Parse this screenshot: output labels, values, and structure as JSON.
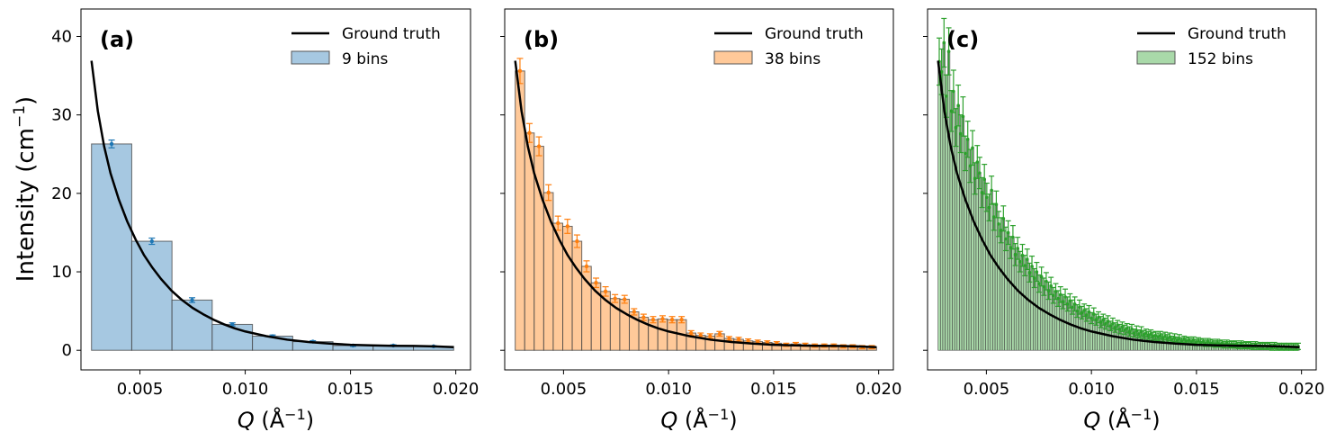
{
  "figure": {
    "ylabel_main": "Intensity (cm",
    "ylabel_sup": "−1",
    "ylabel_end": ")",
    "xlabel_main": "Q",
    "xlabel_unit": " (Å",
    "xlabel_sup": "−1",
    "xlabel_end": ")"
  },
  "chart_data": [
    {
      "type": "bar",
      "panel_label": "(a)",
      "legend": {
        "line": "Ground truth",
        "bars": "9 bins"
      },
      "color": "#1f77b4",
      "bar_fill": "#a6c8e1",
      "xlim": [
        0.0022,
        0.0207
      ],
      "ylim": [
        -2.5,
        43.5
      ],
      "xticks": [
        0.005,
        0.01,
        0.015,
        0.02
      ],
      "xtick_labels": [
        "0.005",
        "0.010",
        "0.015",
        "0.020"
      ],
      "yticks": [
        0,
        10,
        20,
        30,
        40
      ],
      "ytick_labels": [
        "0",
        "10",
        "20",
        "30",
        "40"
      ],
      "bin_start": 0.0027,
      "bin_end": 0.0199,
      "values": [
        26.3,
        13.9,
        6.4,
        3.3,
        1.8,
        1.1,
        0.6,
        0.6,
        0.5
      ],
      "errors": [
        0.5,
        0.4,
        0.3,
        0.2,
        0.15,
        0.12,
        0.1,
        0.1,
        0.08
      ]
    },
    {
      "type": "bar",
      "panel_label": "(b)",
      "legend": {
        "line": "Ground truth",
        "bars": "38 bins"
      },
      "color": "#ff7f0e",
      "bar_fill": "#ffc999",
      "xlim": [
        0.0022,
        0.0207
      ],
      "ylim": [
        -2.5,
        43.5
      ],
      "xticks": [
        0.005,
        0.01,
        0.015,
        0.02
      ],
      "xtick_labels": [
        "0.005",
        "0.010",
        "0.015",
        "0.020"
      ],
      "yticks": [
        0,
        10,
        20,
        30,
        40
      ],
      "ytick_labels": [],
      "bin_start": 0.0027,
      "bin_end": 0.0199,
      "values": [
        35.6,
        27.7,
        26.0,
        20.1,
        16.2,
        15.8,
        13.9,
        10.7,
        8.6,
        7.5,
        6.6,
        6.5,
        4.9,
        4.2,
        3.9,
        4.0,
        3.9,
        3.9,
        2.2,
        1.9,
        1.8,
        2.1,
        1.5,
        1.4,
        1.2,
        1.1,
        1.0,
        0.9,
        0.7,
        0.8,
        0.7,
        0.6,
        0.6,
        0.6,
        0.5,
        0.5,
        0.4,
        0.4
      ],
      "errors": [
        1.6,
        1.2,
        1.2,
        1.0,
        0.9,
        0.9,
        0.8,
        0.7,
        0.6,
        0.6,
        0.5,
        0.5,
        0.4,
        0.4,
        0.4,
        0.4,
        0.4,
        0.4,
        0.3,
        0.3,
        0.3,
        0.3,
        0.25,
        0.25,
        0.25,
        0.2,
        0.2,
        0.2,
        0.2,
        0.2,
        0.2,
        0.2,
        0.2,
        0.2,
        0.2,
        0.2,
        0.2,
        0.2
      ]
    },
    {
      "type": "bar",
      "panel_label": "(c)",
      "legend": {
        "line": "Ground truth",
        "bars": "152 bins"
      },
      "color": "#2ca02c",
      "bar_fill": "#a9d9a9",
      "xlim": [
        0.0022,
        0.0207
      ],
      "ylim": [
        -2.5,
        43.5
      ],
      "xticks": [
        0.005,
        0.01,
        0.015,
        0.02
      ],
      "xtick_labels": [
        "0.005",
        "0.010",
        "0.015",
        "0.020"
      ],
      "yticks": [
        0,
        10,
        20,
        30,
        40
      ],
      "ytick_labels": [],
      "bin_start": 0.0027,
      "bin_end": 0.0199,
      "values": [
        36.8,
        35.5,
        39.2,
        32.4,
        38.1,
        30.5,
        33.0,
        28.4,
        31.2,
        27.6,
        29.8,
        25.1,
        26.9,
        23.5,
        25.8,
        21.9,
        24.0,
        22.6,
        20.1,
        21.8,
        19.5,
        18.2,
        20.4,
        17.0,
        18.6,
        16.1,
        15.3,
        16.8,
        14.2,
        15.0,
        13.1,
        14.4,
        12.2,
        13.0,
        11.3,
        12.1,
        10.8,
        11.6,
        9.9,
        10.7,
        9.2,
        10.0,
        8.5,
        9.4,
        8.1,
        8.8,
        7.6,
        8.2,
        7.0,
        7.5,
        6.6,
        7.1,
        6.2,
        6.8,
        5.9,
        6.3,
        5.5,
        5.9,
        5.0,
        5.5,
        4.8,
        5.1,
        4.5,
        4.9,
        4.1,
        4.6,
        3.9,
        4.2,
        3.6,
        3.9,
        3.4,
        3.7,
        3.1,
        3.4,
        2.9,
        3.2,
        2.7,
        3.0,
        2.6,
        2.8,
        2.4,
        2.7,
        2.2,
        2.5,
        2.1,
        2.4,
        2.0,
        2.2,
        1.9,
        2.1,
        1.8,
        1.9,
        1.7,
        1.9,
        1.6,
        1.8,
        1.5,
        1.7,
        1.4,
        1.6,
        1.3,
        1.5,
        1.2,
        1.4,
        1.2,
        1.3,
        1.1,
        1.3,
        1.0,
        1.2,
        1.0,
        1.1,
        0.9,
        1.1,
        0.9,
        1.0,
        0.8,
        1.0,
        0.8,
        0.9,
        0.7,
        0.9,
        0.7,
        0.8,
        0.7,
        0.8,
        0.6,
        0.8,
        0.6,
        0.7,
        0.6,
        0.7,
        0.5,
        0.7,
        0.5,
        0.6,
        0.5,
        0.6,
        0.5,
        0.6,
        0.4,
        0.6,
        0.4,
        0.5,
        0.4,
        0.5,
        0.4,
        0.5,
        0.4,
        0.5,
        0.4,
        0.5
      ],
      "errors": [
        3.0,
        2.9,
        3.1,
        2.7,
        3.0,
        2.6,
        2.7,
        2.4,
        2.6,
        2.4,
        2.5,
        2.2,
        2.3,
        2.1,
        2.2,
        2.0,
        2.1,
        2.0,
        1.9,
        1.9,
        1.8,
        1.7,
        1.8,
        1.7,
        1.7,
        1.6,
        1.6,
        1.6,
        1.5,
        1.5,
        1.4,
        1.5,
        1.4,
        1.4,
        1.3,
        1.4,
        1.3,
        1.3,
        1.2,
        1.3,
        1.2,
        1.2,
        1.1,
        1.2,
        1.1,
        1.1,
        1.1,
        1.1,
        1.0,
        1.0,
        1.0,
        1.0,
        0.9,
        1.0,
        0.9,
        0.9,
        0.9,
        0.9,
        0.8,
        0.9,
        0.8,
        0.8,
        0.8,
        0.8,
        0.7,
        0.8,
        0.7,
        0.7,
        0.7,
        0.7,
        0.7,
        0.7,
        0.6,
        0.7,
        0.6,
        0.6,
        0.6,
        0.6,
        0.6,
        0.6,
        0.6,
        0.6,
        0.5,
        0.6,
        0.5,
        0.6,
        0.5,
        0.5,
        0.5,
        0.5,
        0.5,
        0.5,
        0.5,
        0.5,
        0.5,
        0.5,
        0.5,
        0.5,
        0.4,
        0.5,
        0.4,
        0.5,
        0.4,
        0.4,
        0.4,
        0.4,
        0.4,
        0.4,
        0.4,
        0.4,
        0.4,
        0.4,
        0.4,
        0.4,
        0.4,
        0.4,
        0.4,
        0.4,
        0.4,
        0.4,
        0.4,
        0.4,
        0.4,
        0.4,
        0.4,
        0.4,
        0.4,
        0.4,
        0.4,
        0.4,
        0.4,
        0.4,
        0.4,
        0.4,
        0.4,
        0.4,
        0.4,
        0.4,
        0.4,
        0.4,
        0.4,
        0.4,
        0.4,
        0.4,
        0.4,
        0.4,
        0.4,
        0.4,
        0.4,
        0.4,
        0.4,
        0.4
      ]
    }
  ],
  "ground_truth": {
    "x": [
      0.0027,
      0.003,
      0.0033,
      0.0036,
      0.004,
      0.0044,
      0.0048,
      0.0052,
      0.0056,
      0.006,
      0.0065,
      0.007,
      0.0075,
      0.008,
      0.0085,
      0.009,
      0.0095,
      0.01,
      0.011,
      0.012,
      0.013,
      0.014,
      0.015,
      0.016,
      0.017,
      0.018,
      0.019,
      0.0199
    ],
    "y": [
      36.9,
      30.5,
      26.0,
      22.6,
      19.2,
      16.4,
      14.1,
      12.1,
      10.5,
      9.1,
      7.6,
      6.4,
      5.4,
      4.6,
      3.9,
      3.3,
      2.8,
      2.4,
      1.8,
      1.35,
      1.05,
      0.85,
      0.7,
      0.62,
      0.57,
      0.55,
      0.5,
      0.4
    ]
  }
}
